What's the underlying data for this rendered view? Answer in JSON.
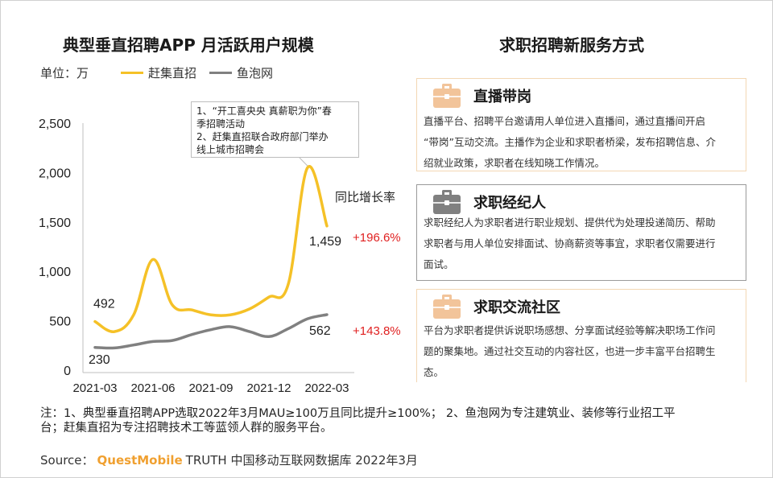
{
  "left_title": "典型垂直招聘APP 月活跃用户规模",
  "right_title": "求职招聘新服务方式",
  "unit_label": "单位：万",
  "callout_lines": [
    "1、“开工喜央央 真薪职为你”春",
    "季招聘活动",
    "2、赶集直招联合政府部门举办",
    "线上城市招聘会"
  ],
  "growth_label": "同比增长率",
  "cards": [
    {
      "name": "直播带岗",
      "icon": "briefcase-icon",
      "icon_color": "#f2c49a",
      "desc": [
        "直播平台、招聘平台邀请用人单位进入直播间，通过直播间开启",
        "“带岗”互动交流。主播作为企业和求职者桥梁，发布招聘信息、介",
        "绍就业政策，求职者在线知晓工作情况。"
      ]
    },
    {
      "name": "求职经纪人",
      "icon": "briefcase-icon",
      "icon_color": "#808080",
      "desc": [
        "求职经纪人为求职者进行职业规划、提供代为处理投递简历、帮助",
        "求职者与用人单位安排面试、协商薪资等事宜，求职者仅需要进行",
        "面试。"
      ]
    },
    {
      "name": "求职交流社区",
      "icon": "briefcase-icon",
      "icon_color": "#f2c49a",
      "desc": [
        "平台为求职者提供诉说职场感想、分享面试经验等解决职场工作问",
        "题的聚集地。通过社交互动的内容社区，也进一步丰富平台招聘生",
        "态。"
      ]
    }
  ],
  "note_lines": [
    "注：1、典型垂直招聘APP选取2022年3月MAU≥100万且同比提升≥100%；  2、鱼泡网为专注建筑业、装修等行业招工平",
    "台；赶集直招为专注招聘技术工等蓝领人群的服务平台。"
  ],
  "source": {
    "prefix": "Source：",
    "brand": "QuestMobile",
    "rest": "TRUTH 中国移动互联网数据库 2022年3月"
  },
  "colors": {
    "gjzb": "#f5c127",
    "ypw": "#808080",
    "growth": "#e02020"
  },
  "chart_data": {
    "type": "line",
    "title": "典型垂直招聘APP 月活跃用户规模",
    "ylabel": "单位：万",
    "ylim": [
      0,
      2500
    ],
    "yticks": [
      "0",
      "500",
      "1,000",
      "1,500",
      "2,000",
      "2,500"
    ],
    "x": [
      "2021-03",
      "2021-04",
      "2021-05",
      "2021-06",
      "2021-07",
      "2021-08",
      "2021-09",
      "2021-10",
      "2021-11",
      "2021-12",
      "2022-01",
      "2022-02",
      "2022-03"
    ],
    "xticks": [
      "2021-03",
      "2021-06",
      "2021-09",
      "2021-12",
      "2022-03"
    ],
    "series": [
      {
        "name": "赶集直招",
        "values": [
          492,
          390,
          560,
          1120,
          660,
          610,
          560,
          560,
          620,
          740,
          870,
          2050,
          1459
        ],
        "labels": [
          {
            "index": 0,
            "text": "492"
          },
          {
            "index": 12,
            "text": "1,459"
          }
        ],
        "growth": "+196.6%"
      },
      {
        "name": "鱼泡网",
        "values": [
          230,
          225,
          255,
          290,
          300,
          360,
          410,
          440,
          390,
          340,
          420,
          520,
          562
        ],
        "labels": [
          {
            "index": 0,
            "text": "230"
          },
          {
            "index": 12,
            "text": "562"
          }
        ],
        "growth": "+143.8%"
      }
    ],
    "grid": false,
    "legend": "top-left"
  }
}
